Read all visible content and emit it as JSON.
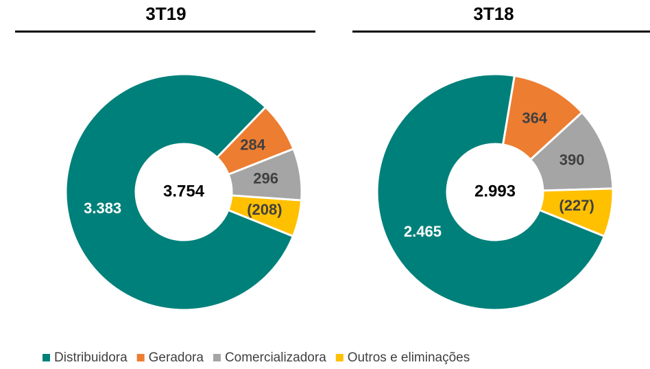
{
  "chart_data": [
    {
      "type": "donut",
      "title": "3T19",
      "categories": [
        "Distribuidora",
        "Geradora",
        "Comercializadora",
        "Outros e eliminações"
      ],
      "values": [
        3383,
        284,
        296,
        -208
      ],
      "value_labels": [
        "3.383",
        "284",
        "296",
        "(208)"
      ],
      "colors": [
        "#00807a",
        "#ed7d31",
        "#a5a5a5",
        "#ffc000"
      ],
      "total": 3754,
      "total_label": "3.754"
    },
    {
      "type": "donut",
      "title": "3T18",
      "categories": [
        "Distribuidora",
        "Geradora",
        "Comercializadora",
        "Outros e eliminações"
      ],
      "values": [
        2465,
        364,
        390,
        -227
      ],
      "value_labels": [
        "2.465",
        "364",
        "390",
        "(227)"
      ],
      "colors": [
        "#00807a",
        "#ed7d31",
        "#a5a5a5",
        "#ffc000"
      ],
      "total": 2993,
      "total_label": "2.993"
    }
  ]
}
